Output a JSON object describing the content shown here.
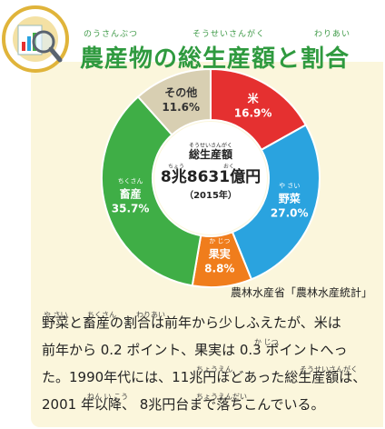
{
  "header": {
    "title": "農産物の総生産額と割合",
    "ruby": {
      "nousanbutsu": "のうさんぶつ",
      "souseisangaku": "そうせいさんがく",
      "wariai": "わりあい"
    }
  },
  "chart_data": {
    "type": "pie",
    "categories": [
      "米",
      "野菜",
      "果実",
      "畜産",
      "その他"
    ],
    "values": [
      16.9,
      27.0,
      8.8,
      35.7,
      11.6
    ],
    "value_labels": [
      "16.9%",
      "27.0%",
      "8.8%",
      "35.7%",
      "11.6%"
    ],
    "colors": [
      "#e53030",
      "#2aa3df",
      "#f07d1c",
      "#3fae46",
      "#d8cfb2"
    ],
    "label_ruby": {
      "野菜": "や さい",
      "果実": "か じつ",
      "畜産": "ちくさん"
    },
    "center": {
      "ruby": "そうせいさんがく",
      "label": "総生産額",
      "value": "8兆8631億円",
      "value_ruby_chou": "ちょう",
      "value_ruby_oku": "おく",
      "year": "（2015年）"
    }
  },
  "source": "農林水産省「農林水産統計」",
  "body": {
    "lines": [
      "野菜と畜産の割合は前年から少しふえたが、米は",
      "前年から 0.2 ポイント、果実は 0.3 ポイントへっ",
      "た。1990年代には、11兆円ほどあった総生産額は、",
      "2001 年以降、 8兆円台まで落ちこんでいる。"
    ],
    "ruby": {
      "yasai": "や さい",
      "chikusan": "ちくさん",
      "wariai": "わりあい",
      "kajitsu": "か じつ",
      "chouen": "ちょうえん",
      "souseisangaku": "そうせいさんがく",
      "nenikou": "ねん い こう",
      "chouendai": "ちょうえんだい"
    }
  },
  "icon": "magnifying-glass-chart-icon"
}
